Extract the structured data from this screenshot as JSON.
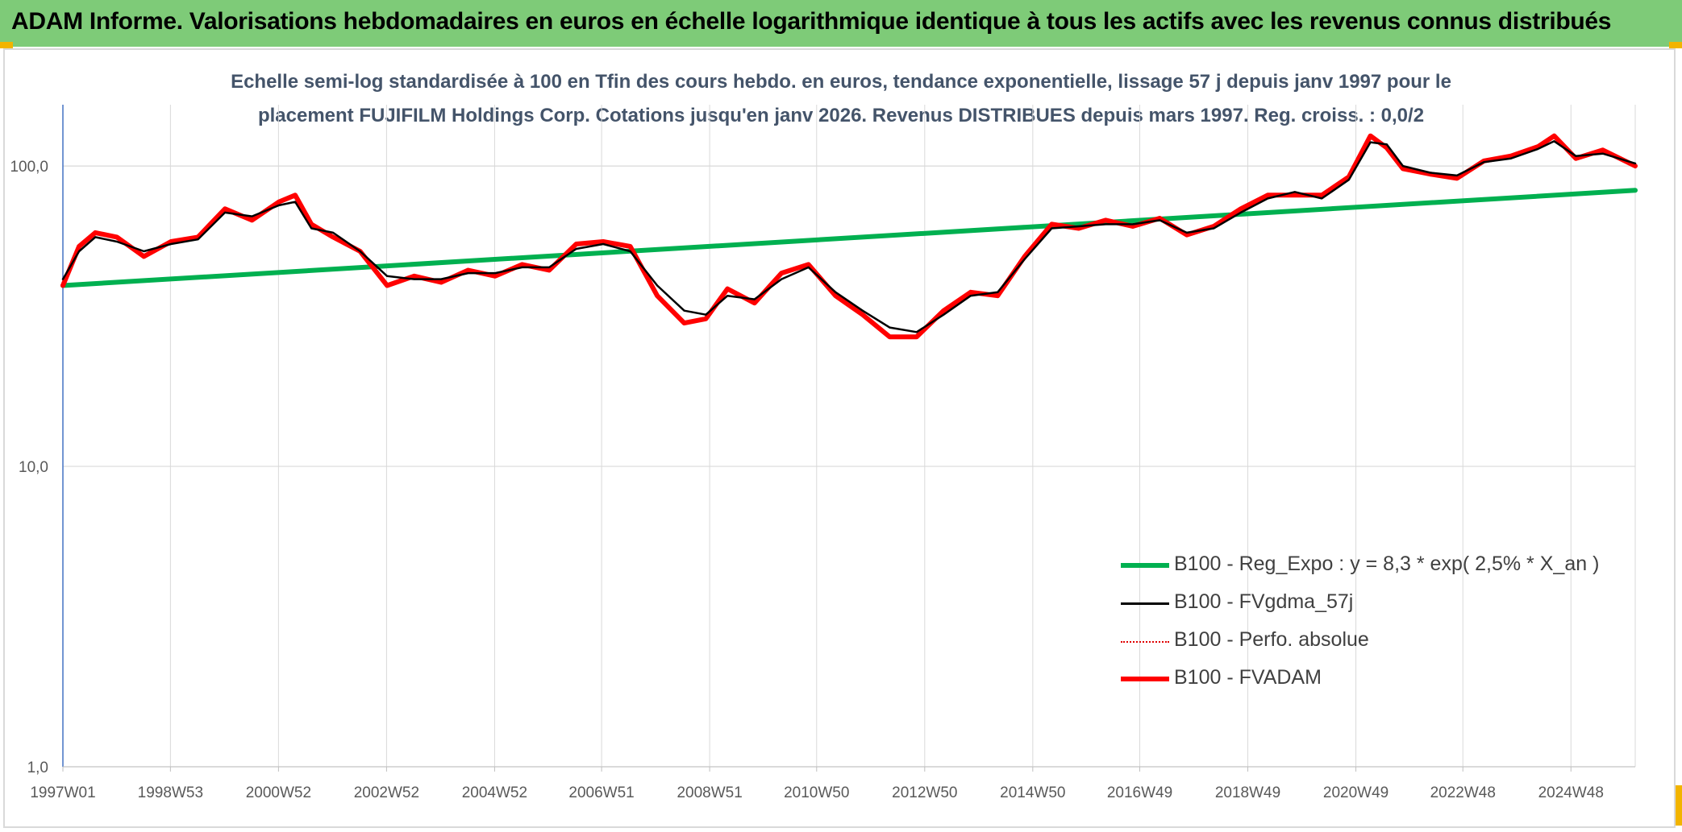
{
  "banner": {
    "title": "ADAM Informe. Valorisations hebdomadaires en euros en échelle logarithmique identique à tous les actifs avec les revenus connus distribués"
  },
  "chart_data": {
    "type": "line",
    "subtitle_lines": [
      "Echelle semi-log standardisée à 100 en Tfin des cours hebdo. en euros, tendance exponentielle, lissage 57 j depuis janv 1997 pour le",
      "placement FUJIFILM Holdings Corp. Cotations jusqu'en janv 2026. Revenus DISTRIBUES depuis mars 1997. Reg. croiss. : 0,0/2"
    ],
    "y_scale": "log",
    "ylim": [
      1,
      160
    ],
    "y_ticks": [
      {
        "value": 1,
        "label": "1,0"
      },
      {
        "value": 10,
        "label": "10,0"
      },
      {
        "value": 100,
        "label": "100,0"
      }
    ],
    "x_range": [
      1997.0,
      2026.1
    ],
    "x_ticks": [
      {
        "x": 1997.0,
        "label": "1997W01"
      },
      {
        "x": 1998.99,
        "label": "1998W53"
      },
      {
        "x": 2000.99,
        "label": "2000W52"
      },
      {
        "x": 2002.99,
        "label": "2002W52"
      },
      {
        "x": 2004.99,
        "label": "2004W52"
      },
      {
        "x": 2006.97,
        "label": "2006W51"
      },
      {
        "x": 2008.97,
        "label": "2008W51"
      },
      {
        "x": 2010.95,
        "label": "2010W50"
      },
      {
        "x": 2012.95,
        "label": "2012W50"
      },
      {
        "x": 2014.95,
        "label": "2014W50"
      },
      {
        "x": 2016.93,
        "label": "2016W49"
      },
      {
        "x": 2018.93,
        "label": "2018W49"
      },
      {
        "x": 2020.93,
        "label": "2020W49"
      },
      {
        "x": 2022.91,
        "label": "2022W48"
      },
      {
        "x": 2024.91,
        "label": "2024W48"
      }
    ],
    "grid": true,
    "legend_position": "bottom-right",
    "series": [
      {
        "name": "B100 - Reg_Expo : y = 8,3 * exp( 2,5% *  X_an )",
        "color": "#00b050",
        "style": "thick",
        "x": [
          1997.0,
          2026.1
        ],
        "y": [
          40,
          83
        ]
      },
      {
        "name": "B100 - FVgdma_57j",
        "color": "#000000",
        "style": "thin",
        "x": [
          1997.0,
          1997.3,
          1997.6,
          1998.0,
          1998.5,
          1999.0,
          1999.5,
          2000.0,
          2000.5,
          2001.0,
          2001.3,
          2001.6,
          2002.0,
          2002.5,
          2003.0,
          2003.5,
          2004.0,
          2004.5,
          2005.0,
          2005.5,
          2006.0,
          2006.5,
          2007.0,
          2007.5,
          2008.0,
          2008.5,
          2008.9,
          2009.3,
          2009.8,
          2010.3,
          2010.8,
          2011.3,
          2011.8,
          2012.3,
          2012.8,
          2013.3,
          2013.8,
          2014.3,
          2014.8,
          2015.3,
          2015.8,
          2016.3,
          2016.8,
          2017.3,
          2017.8,
          2018.3,
          2018.8,
          2019.3,
          2019.8,
          2020.3,
          2020.8,
          2021.2,
          2021.5,
          2021.8,
          2022.3,
          2022.8,
          2023.3,
          2023.8,
          2024.3,
          2024.6,
          2025.0,
          2025.5,
          2026.1
        ],
        "y": [
          42,
          52,
          58,
          56,
          52,
          55,
          57,
          70,
          68,
          74,
          76,
          62,
          60,
          52,
          43,
          42,
          42,
          44,
          44,
          46,
          46,
          53,
          55,
          52,
          40,
          33,
          32,
          37,
          36,
          42,
          46,
          38,
          33,
          29,
          28,
          32,
          37,
          38,
          49,
          62,
          63,
          64,
          64,
          66,
          60,
          62,
          70,
          78,
          82,
          78,
          90,
          120,
          118,
          100,
          95,
          93,
          103,
          106,
          114,
          121,
          108,
          110,
          102
        ]
      },
      {
        "name": "B100 - Perfo. absolue",
        "color": "#e00000",
        "style": "dotted",
        "x": [
          1997.0,
          1997.3,
          1997.6,
          1998.0,
          1998.5,
          1999.0,
          1999.5,
          2000.0,
          2000.5,
          2001.0,
          2001.3,
          2001.6,
          2002.0,
          2002.5,
          2003.0,
          2003.5,
          2004.0,
          2004.5,
          2005.0,
          2005.5,
          2006.0,
          2006.5,
          2007.0,
          2007.5,
          2008.0,
          2008.5,
          2008.9,
          2009.3,
          2009.8,
          2010.3,
          2010.8,
          2011.3,
          2011.8,
          2012.3,
          2012.8,
          2013.3,
          2013.8,
          2014.3,
          2014.8,
          2015.3,
          2015.8,
          2016.3,
          2016.8,
          2017.3,
          2017.8,
          2018.3,
          2018.8,
          2019.3,
          2019.8,
          2020.3,
          2020.8,
          2021.2,
          2021.5,
          2021.8,
          2022.3,
          2022.8,
          2023.3,
          2023.8,
          2024.3,
          2024.6,
          2025.0,
          2025.5,
          2026.1
        ],
        "y": [
          40,
          54,
          60,
          58,
          50,
          56,
          58,
          72,
          66,
          76,
          80,
          64,
          58,
          52,
          40,
          43,
          41,
          45,
          43,
          47,
          45,
          55,
          56,
          54,
          37,
          30,
          31,
          39,
          35,
          44,
          47,
          37,
          32,
          27,
          27,
          33,
          38,
          37,
          50,
          64,
          62,
          66,
          63,
          67,
          59,
          63,
          72,
          80,
          80,
          80,
          92,
          126,
          115,
          98,
          94,
          91,
          104,
          108,
          116,
          126,
          106,
          113,
          100
        ]
      },
      {
        "name": "B100 - FVADAM",
        "color": "#ff0000",
        "style": "thick",
        "x": [
          1997.0,
          1997.3,
          1997.6,
          1998.0,
          1998.5,
          1999.0,
          1999.5,
          2000.0,
          2000.5,
          2001.0,
          2001.3,
          2001.6,
          2002.0,
          2002.5,
          2003.0,
          2003.5,
          2004.0,
          2004.5,
          2005.0,
          2005.5,
          2006.0,
          2006.5,
          2007.0,
          2007.5,
          2008.0,
          2008.5,
          2008.9,
          2009.3,
          2009.8,
          2010.3,
          2010.8,
          2011.3,
          2011.8,
          2012.3,
          2012.8,
          2013.3,
          2013.8,
          2014.3,
          2014.8,
          2015.3,
          2015.8,
          2016.3,
          2016.8,
          2017.3,
          2017.8,
          2018.3,
          2018.8,
          2019.3,
          2019.8,
          2020.3,
          2020.8,
          2021.2,
          2021.5,
          2021.8,
          2022.3,
          2022.8,
          2023.3,
          2023.8,
          2024.3,
          2024.6,
          2025.0,
          2025.5,
          2026.1
        ],
        "y": [
          40,
          54,
          60,
          58,
          50,
          56,
          58,
          72,
          66,
          76,
          80,
          64,
          58,
          52,
          40,
          43,
          41,
          45,
          43,
          47,
          45,
          55,
          56,
          54,
          37,
          30,
          31,
          39,
          35,
          44,
          47,
          37,
          32,
          27,
          27,
          33,
          38,
          37,
          50,
          64,
          62,
          66,
          63,
          67,
          59,
          63,
          72,
          80,
          80,
          80,
          92,
          126,
          115,
          98,
          94,
          91,
          104,
          108,
          116,
          126,
          106,
          113,
          100
        ]
      }
    ]
  }
}
